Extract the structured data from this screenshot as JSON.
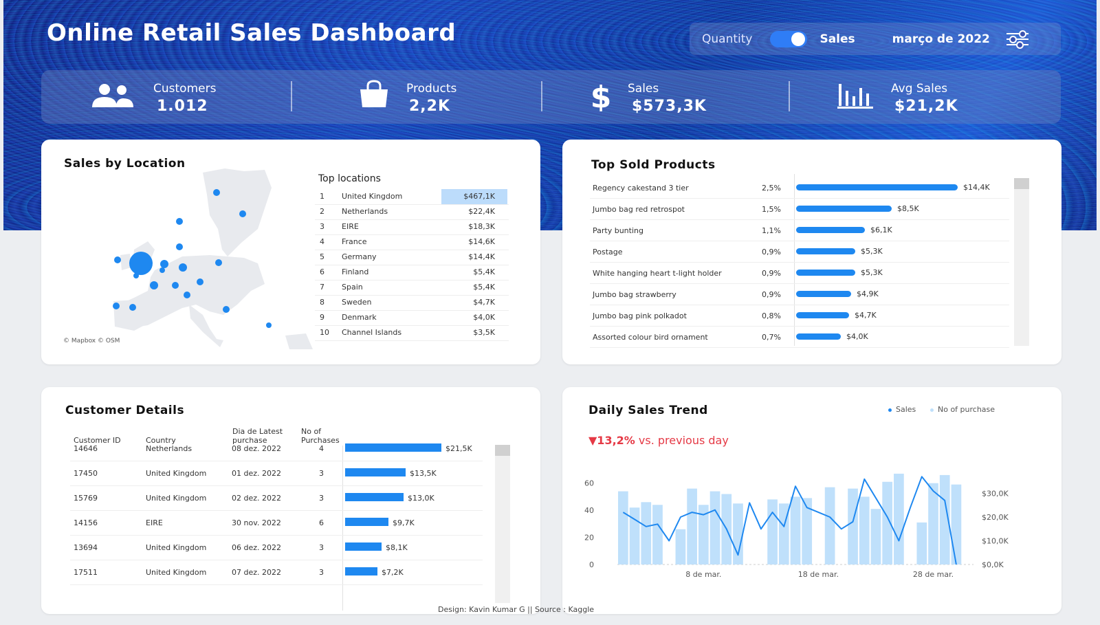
{
  "header": {
    "title": "Online Retail Sales Dashboard",
    "toggle_left": "Quantity",
    "toggle_right": "Sales",
    "toggle_state": "Sales",
    "month": "março de 2022",
    "filter_icon": "sliders-icon"
  },
  "kpis": [
    {
      "label": "Customers",
      "value": "1.012",
      "icon": "users-icon"
    },
    {
      "label": "Products",
      "value": "2,2K",
      "icon": "shopping-bag-icon"
    },
    {
      "label": "Sales",
      "value": "$573,3K",
      "icon": "dollar-icon"
    },
    {
      "label": "Avg Sales",
      "value": "$21,2K",
      "icon": "bar-chart-icon"
    }
  ],
  "location": {
    "title": "Sales by Location",
    "map_credit": "© Mapbox © OSM",
    "top_title": "Top locations",
    "rows": [
      {
        "rank": "1",
        "name": "United Kingdom",
        "value": "$467,1K"
      },
      {
        "rank": "2",
        "name": "Netherlands",
        "value": "$22,4K"
      },
      {
        "rank": "3",
        "name": "EIRE",
        "value": "$18,3K"
      },
      {
        "rank": "4",
        "name": "France",
        "value": "$14,6K"
      },
      {
        "rank": "5",
        "name": "Germany",
        "value": "$14,4K"
      },
      {
        "rank": "6",
        "name": "Finland",
        "value": "$5,4K"
      },
      {
        "rank": "7",
        "name": "Spain",
        "value": "$5,4K"
      },
      {
        "rank": "8",
        "name": "Sweden",
        "value": "$4,7K"
      },
      {
        "rank": "9",
        "name": "Denmark",
        "value": "$4,0K"
      },
      {
        "rank": "10",
        "name": "Channel Islands",
        "value": "$3,5K"
      }
    ]
  },
  "products": {
    "title": "Top Sold Products",
    "rows": [
      {
        "name": "Regency cakestand 3 tier",
        "pct": "2,5%",
        "value": "$14,4K",
        "amount": 14.4
      },
      {
        "name": "Jumbo bag red retrospot",
        "pct": "1,5%",
        "value": "$8,5K",
        "amount": 8.5
      },
      {
        "name": "Party bunting",
        "pct": "1,1%",
        "value": "$6,1K",
        "amount": 6.1
      },
      {
        "name": "Postage",
        "pct": "0,9%",
        "value": "$5,3K",
        "amount": 5.3
      },
      {
        "name": "White hanging heart t-light holder",
        "pct": "0,9%",
        "value": "$5,3K",
        "amount": 5.3
      },
      {
        "name": "Jumbo bag strawberry",
        "pct": "0,9%",
        "value": "$4,9K",
        "amount": 4.9
      },
      {
        "name": "Jumbo bag pink polkadot",
        "pct": "0,8%",
        "value": "$4,7K",
        "amount": 4.7
      },
      {
        "name": "Assorted colour bird ornament",
        "pct": "0,7%",
        "value": "$4,0K",
        "amount": 4.0
      }
    ]
  },
  "customers": {
    "title": "Customer Details",
    "headers": {
      "id": "Customer ID",
      "country": "Country",
      "latest_1": "Dia de Latest",
      "latest_2": "purchase",
      "np_1": "No of",
      "np_2": "Purchases"
    },
    "rows": [
      {
        "id": "14646",
        "country": "Netherlands",
        "date": "08 dez. 2022",
        "purchases": "4",
        "value": "$21,5K",
        "amount": 21.5
      },
      {
        "id": "17450",
        "country": "United Kingdom",
        "date": "01 dez. 2022",
        "purchases": "3",
        "value": "$13,5K",
        "amount": 13.5
      },
      {
        "id": "15769",
        "country": "United Kingdom",
        "date": "02 dez. 2022",
        "purchases": "3",
        "value": "$13,0K",
        "amount": 13.0
      },
      {
        "id": "14156",
        "country": "EIRE",
        "date": "30 nov. 2022",
        "purchases": "6",
        "value": "$9,7K",
        "amount": 9.7
      },
      {
        "id": "13694",
        "country": "United Kingdom",
        "date": "06 dez. 2022",
        "purchases": "3",
        "value": "$8,1K",
        "amount": 8.1
      },
      {
        "id": "17511",
        "country": "United Kingdom",
        "date": "07 dez. 2022",
        "purchases": "3",
        "value": "$7,2K",
        "amount": 7.2
      }
    ]
  },
  "trend": {
    "title": "Daily Sales Trend",
    "legend_sales": "Sales",
    "legend_purchases": "No of purchase",
    "delta_value": "▼13,2%",
    "delta_text": "vs. previous day",
    "colors": {
      "sales": "#1e88f0",
      "purchases": "#bfe0fb",
      "delta": "#e53945"
    }
  },
  "chart_data": {
    "type": "bar",
    "title": "Daily Sales Trend",
    "xlabel": "",
    "ylabel": "",
    "x": [
      1,
      2,
      3,
      4,
      5,
      6,
      7,
      8,
      9,
      10,
      11,
      12,
      13,
      14,
      15,
      16,
      17,
      18,
      19,
      20,
      21,
      22,
      23,
      24,
      25,
      26,
      27,
      28,
      29,
      30,
      31
    ],
    "x_ticks": [
      {
        "x": 8,
        "label": "8 de mar."
      },
      {
        "x": 18,
        "label": "18 de mar."
      },
      {
        "x": 28,
        "label": "28 de mar."
      }
    ],
    "left_axis": {
      "ticks": [
        0,
        20,
        40,
        60
      ],
      "range": [
        0,
        70
      ]
    },
    "right_axis": {
      "ticks": [
        "$0,0K",
        "$10,0K",
        "$20,0K",
        "$30,0K"
      ],
      "range": [
        0,
        40
      ]
    },
    "series": [
      {
        "name": "No of purchase",
        "type": "bar",
        "axis": "left",
        "values": [
          54,
          42,
          46,
          44,
          0,
          26,
          56,
          44,
          54,
          52,
          45,
          0,
          0,
          48,
          45,
          50,
          49,
          0,
          57,
          0,
          56,
          50,
          41,
          61,
          67,
          0,
          31,
          60,
          66,
          59,
          0
        ]
      },
      {
        "name": "Sales",
        "type": "line",
        "axis": "right",
        "values": [
          22,
          19,
          16,
          17,
          10,
          20,
          22,
          21,
          23,
          15,
          4,
          26,
          15,
          22,
          16,
          33,
          24,
          22,
          20,
          15,
          18,
          36,
          28,
          20,
          10,
          24,
          37,
          31,
          27,
          0,
          0
        ]
      }
    ]
  },
  "footer": {
    "text": "Design: Kavin Kumar G || Source : Kaggle"
  }
}
